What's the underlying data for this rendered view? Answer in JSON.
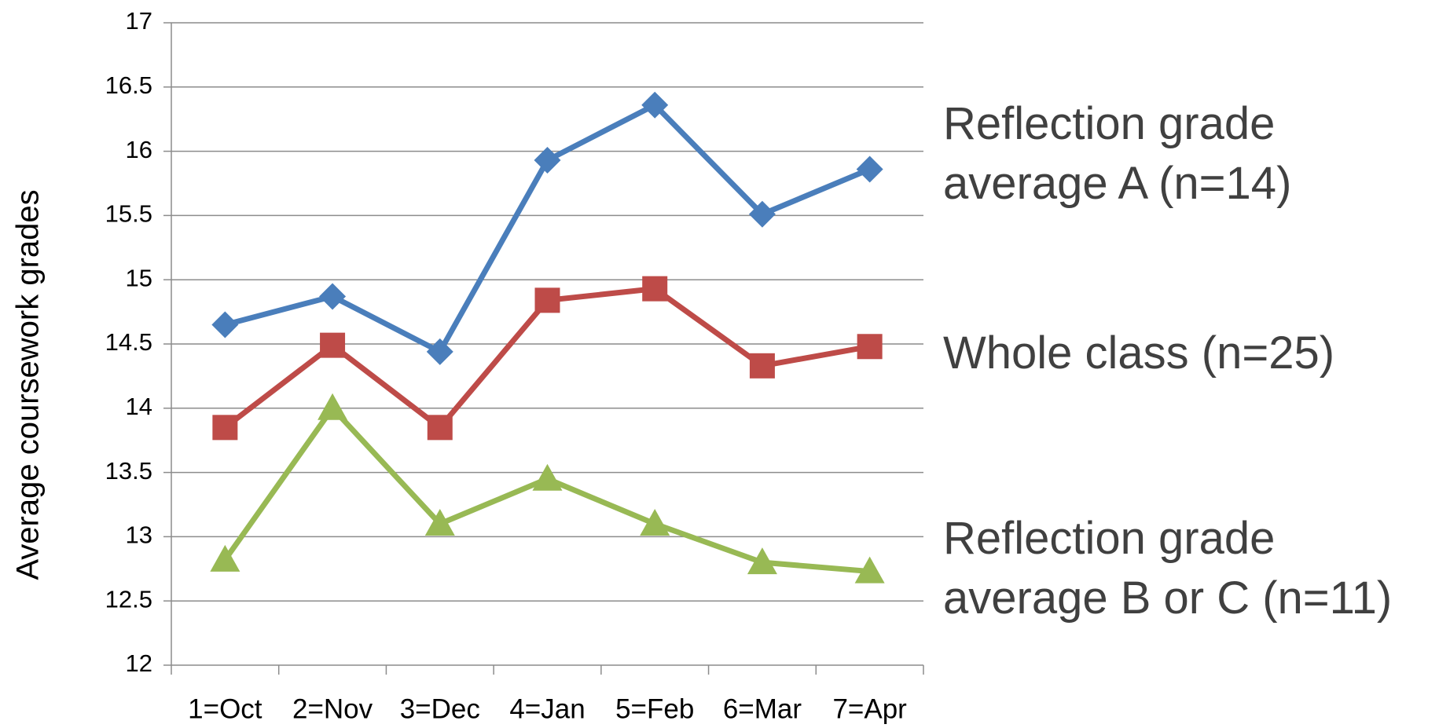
{
  "chart_data": {
    "type": "line",
    "y_label": "Average coursework grades",
    "categories": [
      "1=Oct",
      "2=Nov",
      "3=Dec",
      "4=Jan",
      "5=Feb",
      "6=Mar",
      "7=Apr"
    ],
    "series": [
      {
        "name": "Reflection grade average A (n=14)",
        "color": "#4a7ebb",
        "marker": "diamond",
        "values": [
          14.65,
          14.87,
          14.44,
          15.93,
          16.36,
          15.51,
          15.86
        ]
      },
      {
        "name": "Whole class (n=25)",
        "color": "#be4b48",
        "marker": "square",
        "values": [
          13.85,
          14.49,
          13.85,
          14.84,
          14.93,
          14.33,
          14.48
        ]
      },
      {
        "name": "Reflection grade average B or C (n=11)",
        "color": "#98b954",
        "marker": "triangle",
        "values": [
          12.82,
          14.0,
          13.1,
          13.45,
          13.1,
          12.8,
          12.73
        ]
      }
    ],
    "ylim": [
      12,
      17
    ],
    "yticks": [
      12,
      12.5,
      13,
      13.5,
      14,
      14.5,
      15,
      15.5,
      16,
      16.5,
      17
    ],
    "grid": true
  }
}
